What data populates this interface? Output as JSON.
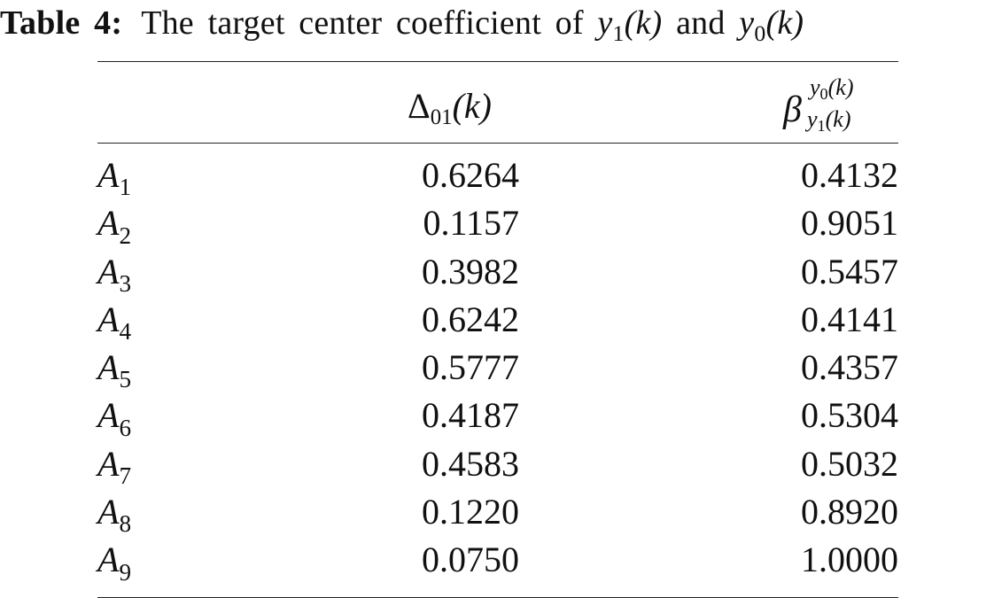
{
  "caption": {
    "label": "Table 4:",
    "text": "The target center coefficient of",
    "var_a": "y",
    "var_a_sub": "1",
    "var_a_arg": "(k)",
    "conj": "and",
    "var_b": "y",
    "var_b_sub": "0",
    "var_b_arg": "(k)"
  },
  "table": {
    "columns": {
      "delta": {
        "symbol": "Δ",
        "sub": "01",
        "arg": "(k)"
      },
      "beta": {
        "symbol": "β",
        "sup_var": "y",
        "sup_sub": "0",
        "sup_arg": "(k)",
        "low_var": "y",
        "low_sub": "1",
        "low_arg": "(k)"
      }
    },
    "rows": [
      {
        "letter": "A",
        "index": "1",
        "delta": "0.6264",
        "beta": "0.4132"
      },
      {
        "letter": "A",
        "index": "2",
        "delta": "0.1157",
        "beta": "0.9051"
      },
      {
        "letter": "A",
        "index": "3",
        "delta": "0.3982",
        "beta": "0.5457"
      },
      {
        "letter": "A",
        "index": "4",
        "delta": "0.6242",
        "beta": "0.4141"
      },
      {
        "letter": "A",
        "index": "5",
        "delta": "0.5777",
        "beta": "0.4357"
      },
      {
        "letter": "A",
        "index": "6",
        "delta": "0.4187",
        "beta": "0.5304"
      },
      {
        "letter": "A",
        "index": "7",
        "delta": "0.4583",
        "beta": "0.5032"
      },
      {
        "letter": "A",
        "index": "8",
        "delta": "0.1220",
        "beta": "0.8920"
      },
      {
        "letter": "A",
        "index": "9",
        "delta": "0.0750",
        "beta": "1.0000"
      }
    ]
  }
}
